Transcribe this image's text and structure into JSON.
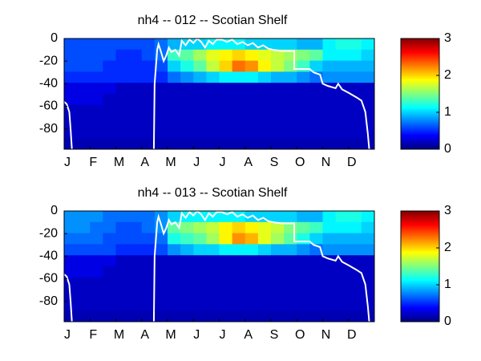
{
  "chart_data": [
    {
      "type": "heatmap",
      "title": "nh4 -- 012 -- Scotian Shelf",
      "colormap": "jet",
      "xlim": [
        0,
        12
      ],
      "xticks": [
        {
          "value": 0,
          "label": "J"
        },
        {
          "value": 1,
          "label": "F"
        },
        {
          "value": 2,
          "label": "M"
        },
        {
          "value": 3,
          "label": "A"
        },
        {
          "value": 4,
          "label": "M"
        },
        {
          "value": 5,
          "label": "J"
        },
        {
          "value": 6,
          "label": "J"
        },
        {
          "value": 7,
          "label": "A"
        },
        {
          "value": 8,
          "label": "S"
        },
        {
          "value": 9,
          "label": "O"
        },
        {
          "value": 10,
          "label": "N"
        },
        {
          "value": 11,
          "label": "D"
        }
      ],
      "ylim": [
        -98,
        0
      ],
      "yticks": [
        0,
        -20,
        -40,
        -60,
        -80
      ],
      "clim": [
        0,
        3
      ],
      "cticks": [
        0,
        1,
        2,
        3
      ],
      "z": [
        [
          0.6,
          0.6,
          0.6,
          0.6,
          0.6,
          0.6,
          0.6,
          0.7,
          0.9,
          1.0,
          1.0,
          1.1,
          1.1,
          1.1,
          1.0,
          1.0,
          1.0,
          1.0,
          0.9,
          0.9,
          1.1,
          1.2,
          1.2,
          1.1
        ],
        [
          0.6,
          0.6,
          0.6,
          0.6,
          0.5,
          0.5,
          0.6,
          0.7,
          1.3,
          1.4,
          1.6,
          1.8,
          1.9,
          2.0,
          1.9,
          1.8,
          1.7,
          1.6,
          1.5,
          1.4,
          1.1,
          1.1,
          1.1,
          1.0
        ],
        [
          0.6,
          0.6,
          0.6,
          0.5,
          0.5,
          0.5,
          0.5,
          0.6,
          1.0,
          1.2,
          1.4,
          1.7,
          2.0,
          2.3,
          2.2,
          1.9,
          1.7,
          1.5,
          1.3,
          1.0,
          0.9,
          0.9,
          0.9,
          0.9
        ],
        [
          0.5,
          0.5,
          0.5,
          0.5,
          0.5,
          0.5,
          0.5,
          0.5,
          0.7,
          0.8,
          0.9,
          1.0,
          1.1,
          1.1,
          1.1,
          1.0,
          0.9,
          0.9,
          0.8,
          0.7,
          0.8,
          0.8,
          0.8,
          0.8
        ],
        [
          0.3,
          0.3,
          0.3,
          0.3,
          0.2,
          0.2,
          0.2,
          0.2,
          0.2,
          0.2,
          0.2,
          0.2,
          0.2,
          0.2,
          0.2,
          0.2,
          0.2,
          0.2,
          0.2,
          0.2,
          0.2,
          0.2,
          0.2,
          0.2
        ],
        [
          0.3,
          0.3,
          0.3,
          0.2,
          0.2,
          0.2,
          0.2,
          0.2,
          0.2,
          0.2,
          0.2,
          0.2,
          0.2,
          0.2,
          0.2,
          0.2,
          0.2,
          0.2,
          0.2,
          0.2,
          0.2,
          0.2,
          0.2,
          0.2
        ],
        [
          0.2,
          0.2,
          0.2,
          0.2,
          0.2,
          0.2,
          0.2,
          0.2,
          0.2,
          0.2,
          0.2,
          0.2,
          0.2,
          0.2,
          0.2,
          0.2,
          0.2,
          0.2,
          0.2,
          0.2,
          0.2,
          0.2,
          0.2,
          0.2
        ],
        [
          0.2,
          0.2,
          0.2,
          0.2,
          0.2,
          0.2,
          0.2,
          0.2,
          0.2,
          0.2,
          0.2,
          0.2,
          0.2,
          0.2,
          0.2,
          0.2,
          0.2,
          0.2,
          0.2,
          0.2,
          0.2,
          0.2,
          0.2,
          0.2
        ],
        [
          0.2,
          0.2,
          0.2,
          0.2,
          0.2,
          0.2,
          0.2,
          0.2,
          0.2,
          0.2,
          0.2,
          0.2,
          0.2,
          0.2,
          0.2,
          0.2,
          0.2,
          0.2,
          0.2,
          0.2,
          0.2,
          0.2,
          0.2,
          0.2
        ],
        [
          0.15,
          0.15,
          0.15,
          0.15,
          0.15,
          0.15,
          0.15,
          0.15,
          0.15,
          0.15,
          0.15,
          0.15,
          0.15,
          0.15,
          0.15,
          0.15,
          0.15,
          0.15,
          0.15,
          0.15,
          0.15,
          0.15,
          0.15,
          0.15
        ]
      ],
      "line": {
        "color": "#ffffff",
        "x": [
          0,
          0.1,
          0.2,
          0.25,
          0.3,
          null,
          3.47,
          3.5,
          3.55,
          3.6,
          3.65,
          3.75,
          3.85,
          3.95,
          4.05,
          4.15,
          4.3,
          4.45,
          4.55,
          4.7,
          4.85,
          5.0,
          5.15,
          5.3,
          5.45,
          5.6,
          5.75,
          5.9,
          6.1,
          6.3,
          6.5,
          6.7,
          6.9,
          7.1,
          7.3,
          7.5,
          7.7,
          7.9,
          8.1,
          8.4,
          8.9,
          8.9,
          9.5,
          9.65,
          9.9,
          10.0,
          10.2,
          10.5,
          10.6,
          10.75,
          11.0,
          11.3,
          11.5,
          11.65,
          11.75,
          11.8
        ],
        "y": [
          -56,
          -58,
          -65,
          -80,
          -98,
          null,
          -98,
          -40,
          -25,
          -10,
          -5,
          -12,
          -20,
          -15,
          -8,
          -12,
          -10,
          -15,
          -2,
          -6,
          -1,
          -4,
          0,
          -3,
          -8,
          -2,
          -5,
          -1,
          -1,
          -3,
          -1,
          -5,
          -3,
          -6,
          -4,
          -8,
          -6,
          -9,
          -10,
          -11,
          -11,
          -27,
          -27,
          -30,
          -32,
          -40,
          -42,
          -44,
          -40,
          -45,
          -48,
          -52,
          -55,
          -65,
          -85,
          -98
        ]
      }
    },
    {
      "type": "heatmap",
      "title": "nh4 -- 013 -- Scotian Shelf",
      "colormap": "jet",
      "xlim": [
        0,
        12
      ],
      "xticks": [
        {
          "value": 0,
          "label": "J"
        },
        {
          "value": 1,
          "label": "F"
        },
        {
          "value": 2,
          "label": "M"
        },
        {
          "value": 3,
          "label": "A"
        },
        {
          "value": 4,
          "label": "M"
        },
        {
          "value": 5,
          "label": "J"
        },
        {
          "value": 6,
          "label": "J"
        },
        {
          "value": 7,
          "label": "A"
        },
        {
          "value": 8,
          "label": "S"
        },
        {
          "value": 9,
          "label": "O"
        },
        {
          "value": 10,
          "label": "N"
        },
        {
          "value": 11,
          "label": "D"
        }
      ],
      "ylim": [
        -98,
        0
      ],
      "yticks": [
        0,
        -20,
        -40,
        -60,
        -80
      ],
      "clim": [
        0,
        3
      ],
      "cticks": [
        0,
        1,
        2,
        3
      ],
      "z": [
        [
          0.8,
          0.8,
          0.8,
          0.7,
          0.7,
          0.7,
          0.7,
          0.8,
          1.0,
          1.1,
          1.1,
          1.1,
          1.1,
          1.1,
          1.0,
          1.0,
          1.0,
          1.0,
          0.9,
          0.9,
          1.1,
          1.2,
          1.2,
          1.1
        ],
        [
          0.8,
          0.8,
          0.7,
          0.7,
          0.6,
          0.6,
          0.7,
          0.8,
          1.4,
          1.5,
          1.6,
          1.7,
          1.9,
          2.0,
          1.9,
          1.8,
          1.7,
          1.5,
          1.4,
          1.3,
          1.1,
          1.1,
          1.1,
          1.0
        ],
        [
          0.7,
          0.7,
          0.7,
          0.6,
          0.6,
          0.6,
          0.6,
          0.7,
          1.2,
          1.3,
          1.4,
          1.6,
          1.9,
          2.2,
          2.1,
          1.8,
          1.6,
          1.4,
          1.2,
          1.0,
          0.9,
          0.9,
          0.9,
          0.9
        ],
        [
          0.6,
          0.6,
          0.6,
          0.6,
          0.5,
          0.5,
          0.5,
          0.6,
          0.8,
          0.9,
          1.0,
          1.0,
          1.1,
          1.1,
          1.1,
          1.0,
          0.9,
          0.9,
          0.8,
          0.7,
          0.8,
          0.8,
          0.8,
          0.8
        ],
        [
          0.3,
          0.3,
          0.3,
          0.3,
          0.2,
          0.2,
          0.2,
          0.2,
          0.2,
          0.2,
          0.2,
          0.2,
          0.2,
          0.2,
          0.2,
          0.2,
          0.2,
          0.2,
          0.2,
          0.2,
          0.2,
          0.2,
          0.2,
          0.2
        ],
        [
          0.3,
          0.3,
          0.3,
          0.2,
          0.2,
          0.2,
          0.2,
          0.2,
          0.2,
          0.2,
          0.2,
          0.2,
          0.2,
          0.2,
          0.2,
          0.2,
          0.2,
          0.2,
          0.2,
          0.2,
          0.2,
          0.2,
          0.2,
          0.2
        ],
        [
          0.2,
          0.2,
          0.2,
          0.2,
          0.2,
          0.2,
          0.2,
          0.2,
          0.2,
          0.2,
          0.2,
          0.2,
          0.2,
          0.2,
          0.2,
          0.2,
          0.2,
          0.2,
          0.2,
          0.2,
          0.2,
          0.2,
          0.2,
          0.2
        ],
        [
          0.2,
          0.2,
          0.2,
          0.2,
          0.2,
          0.2,
          0.2,
          0.2,
          0.2,
          0.2,
          0.2,
          0.2,
          0.2,
          0.2,
          0.2,
          0.2,
          0.2,
          0.2,
          0.2,
          0.2,
          0.2,
          0.2,
          0.2,
          0.2
        ],
        [
          0.2,
          0.2,
          0.2,
          0.2,
          0.2,
          0.2,
          0.2,
          0.2,
          0.2,
          0.2,
          0.2,
          0.2,
          0.2,
          0.2,
          0.2,
          0.2,
          0.2,
          0.2,
          0.2,
          0.2,
          0.2,
          0.2,
          0.2,
          0.2
        ],
        [
          0.15,
          0.15,
          0.15,
          0.15,
          0.15,
          0.15,
          0.15,
          0.15,
          0.15,
          0.15,
          0.15,
          0.15,
          0.15,
          0.15,
          0.15,
          0.15,
          0.15,
          0.15,
          0.15,
          0.15,
          0.15,
          0.15,
          0.15,
          0.15
        ]
      ],
      "line": {
        "color": "#ffffff",
        "x": [
          0,
          0.1,
          0.2,
          0.25,
          0.3,
          null,
          3.47,
          3.5,
          3.55,
          3.6,
          3.65,
          3.75,
          3.85,
          3.95,
          4.05,
          4.15,
          4.3,
          4.45,
          4.55,
          4.7,
          4.85,
          5.0,
          5.15,
          5.3,
          5.45,
          5.6,
          5.75,
          5.9,
          6.1,
          6.3,
          6.5,
          6.7,
          6.9,
          7.1,
          7.3,
          7.5,
          7.7,
          7.9,
          8.1,
          8.4,
          8.9,
          8.9,
          9.5,
          9.65,
          9.9,
          10.0,
          10.2,
          10.5,
          10.6,
          10.75,
          11.0,
          11.3,
          11.5,
          11.65,
          11.75,
          11.8
        ],
        "y": [
          -56,
          -58,
          -65,
          -80,
          -98,
          null,
          -98,
          -40,
          -25,
          -10,
          -5,
          -12,
          -20,
          -15,
          -8,
          -12,
          -10,
          -15,
          -2,
          -6,
          -1,
          -4,
          0,
          -3,
          -8,
          -2,
          -5,
          -1,
          -1,
          -3,
          -1,
          -5,
          -3,
          -6,
          -4,
          -8,
          -6,
          -9,
          -10,
          -11,
          -11,
          -27,
          -27,
          -30,
          -32,
          -40,
          -42,
          -44,
          -40,
          -45,
          -48,
          -52,
          -55,
          -65,
          -85,
          -98
        ]
      }
    }
  ]
}
